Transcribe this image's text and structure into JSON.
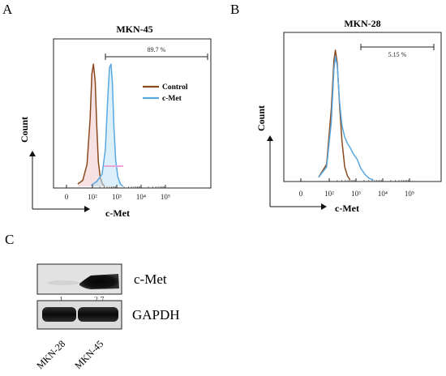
{
  "figure": {
    "panels": {
      "a": "A",
      "b": "B",
      "c": "C"
    }
  },
  "chart_data": [
    {
      "type": "area",
      "panel": "A",
      "title": "MKN-45",
      "xlabel": "c-Met",
      "ylabel": "Count",
      "xscale": "log",
      "xticks": [
        "0",
        "10²",
        "10³",
        "10⁴",
        "10⁵"
      ],
      "gate_label": "89.7 %",
      "legend": {
        "position": "right",
        "entries": [
          "Control",
          "c-Met"
        ]
      },
      "series": [
        {
          "name": "Control",
          "color": "#8a4a1e",
          "x": [
            25,
            40,
            60,
            80,
            95,
            110,
            130,
            150,
            175,
            210,
            260,
            320
          ],
          "y": [
            0.02,
            0.05,
            0.18,
            0.55,
            0.92,
            1.0,
            0.86,
            0.5,
            0.2,
            0.07,
            0.02,
            0.0
          ]
        },
        {
          "name": "c-Met",
          "color": "#5aa8e0",
          "x": [
            90,
            150,
            250,
            340,
            420,
            500,
            580,
            660,
            760,
            900,
            1100,
            1400,
            1800
          ],
          "y": [
            0.01,
            0.04,
            0.1,
            0.3,
            0.7,
            0.97,
            1.0,
            0.85,
            0.5,
            0.22,
            0.08,
            0.02,
            0.0
          ]
        }
      ]
    },
    {
      "type": "area",
      "panel": "B",
      "title": "MKN-28",
      "xlabel": "c-Met",
      "ylabel": "Count",
      "xscale": "log",
      "xticks": [
        "0",
        "10²",
        "10³",
        "10⁴",
        "10⁵"
      ],
      "gate_label": "5.15 %",
      "series": [
        {
          "name": "Control",
          "color": "#8a4a1e",
          "x": [
            40,
            80,
            120,
            150,
            170,
            200,
            240,
            300,
            380,
            480,
            600
          ],
          "y": [
            0.02,
            0.12,
            0.55,
            0.92,
            1.0,
            0.9,
            0.6,
            0.3,
            0.1,
            0.03,
            0.0
          ]
        },
        {
          "name": "c-Met",
          "color": "#5aa8e0",
          "x": [
            40,
            80,
            120,
            150,
            170,
            200,
            240,
            300,
            380,
            480,
            600,
            800,
            1100,
            1500,
            2200,
            3200,
            4500
          ],
          "y": [
            0.02,
            0.1,
            0.45,
            0.85,
            0.95,
            0.88,
            0.62,
            0.42,
            0.33,
            0.28,
            0.25,
            0.2,
            0.16,
            0.09,
            0.04,
            0.01,
            0.0
          ]
        }
      ]
    }
  ],
  "blot": {
    "bands": [
      {
        "label": "c-Met",
        "quant": [
          "1",
          "2.7"
        ]
      },
      {
        "label": "GAPDH"
      }
    ],
    "lanes": [
      "MKN-28",
      "MKN-45"
    ]
  }
}
